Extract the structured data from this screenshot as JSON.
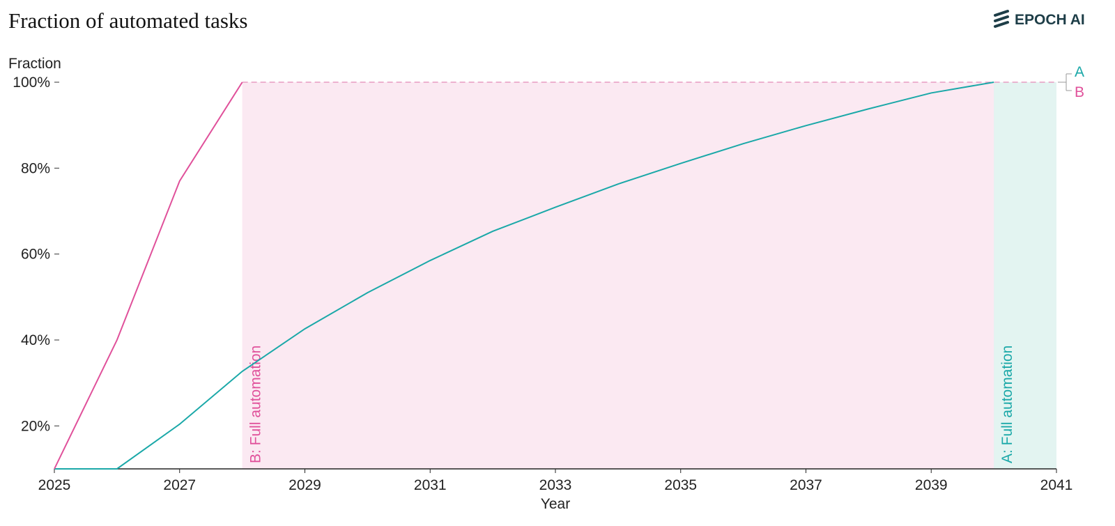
{
  "logo": "EPOCH AI",
  "chart_data": {
    "type": "line",
    "title": "Fraction of automated tasks",
    "y_label": "Fraction",
    "x_label": "Year",
    "x": [
      2025,
      2026,
      2027,
      2028,
      2029,
      2030,
      2031,
      2032,
      2033,
      2034,
      2035,
      2036,
      2037,
      2038,
      2039,
      2040
    ],
    "series": [
      {
        "name": "A",
        "color": "#1aa8a8",
        "values": [
          10,
          10,
          20.4,
          32.7,
          42.6,
          51.0,
          58.5,
          65.3,
          70.9,
          76.3,
          81.1,
          85.7,
          89.9,
          93.8,
          97.5,
          100
        ]
      },
      {
        "name": "B",
        "color": "#e0509a",
        "values": [
          10,
          40,
          77,
          100,
          null,
          null,
          null,
          null,
          null,
          null,
          null,
          null,
          null,
          null,
          null,
          null
        ]
      }
    ],
    "shaded_regions": [
      {
        "x": [
          2028,
          2041
        ],
        "color": "#fbe9f2",
        "label": "B: Full automation",
        "label_color": "#e0509a"
      },
      {
        "x": [
          2040,
          2041
        ],
        "color": "#e3f4f1",
        "label": "A: Full automation",
        "label_color": "#1aa8a8"
      }
    ],
    "dashed_line": {
      "y": 100,
      "from": 2028,
      "color": "#e79bc2"
    },
    "xlim": [
      2025,
      2041
    ],
    "xticks": [
      2025,
      2027,
      2029,
      2031,
      2033,
      2035,
      2037,
      2039,
      2041
    ],
    "ylim": [
      10,
      100
    ],
    "yticks": [
      {
        "value": 20,
        "label": "20%"
      },
      {
        "value": 40,
        "label": "40%"
      },
      {
        "value": 60,
        "label": "60%"
      },
      {
        "value": 80,
        "label": "80%"
      },
      {
        "value": 100,
        "label": "100%"
      }
    ]
  }
}
